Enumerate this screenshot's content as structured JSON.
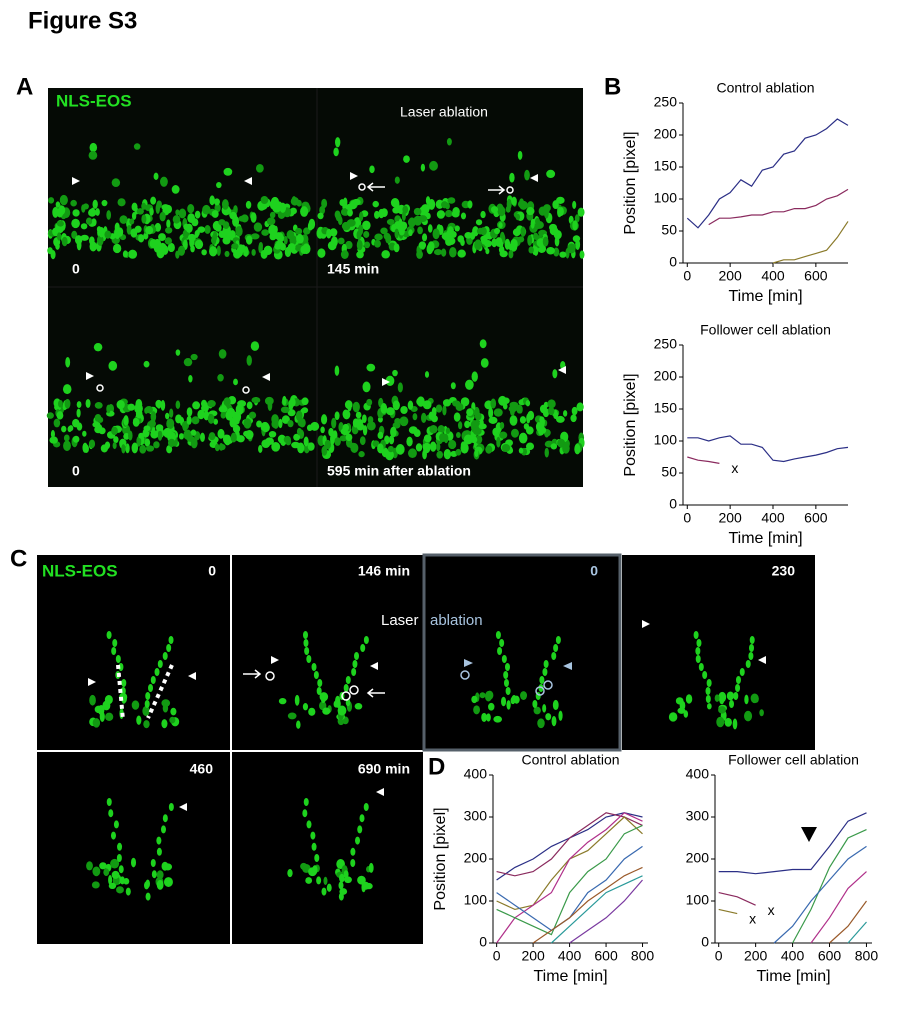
{
  "figure_title": "Figure S3",
  "panel_labels": [
    "A",
    "B",
    "C",
    "D"
  ],
  "panel_a": {
    "stain": "NLS-EOS",
    "laser_ablation": "Laser ablation",
    "times": [
      "0",
      "145 min",
      "0",
      "595 min after ablation"
    ]
  },
  "panel_c": {
    "stain": "NLS-EOS",
    "times": [
      "0",
      "146 min",
      "0",
      "230",
      "460",
      "690 min"
    ],
    "laser": "Laser",
    "ablation": "ablation"
  },
  "chart_data": [
    {
      "type": "line",
      "title": "Control ablation",
      "x_label": "Time [min]",
      "y_label": "Position [pixel]",
      "x": [
        0,
        50,
        100,
        150,
        200,
        250,
        300,
        350,
        400,
        450,
        500,
        550,
        600,
        650,
        700,
        750
      ],
      "xlim": [
        -20,
        750
      ],
      "xticks": [
        0,
        200,
        400,
        600
      ],
      "ylim": [
        0,
        250
      ],
      "yticks": [
        0,
        50,
        100,
        150,
        200,
        250
      ],
      "series": [
        {
          "color": "#2b2f86",
          "values": [
            70,
            55,
            75,
            100,
            110,
            130,
            120,
            145,
            150,
            170,
            175,
            195,
            200,
            210,
            225,
            215
          ]
        },
        {
          "color": "#8a2a5e",
          "values": [
            null,
            null,
            60,
            70,
            70,
            72,
            75,
            75,
            80,
            80,
            85,
            85,
            90,
            100,
            105,
            115
          ]
        },
        {
          "color": "#8a7a2a",
          "values": [
            null,
            null,
            null,
            null,
            null,
            null,
            null,
            null,
            0,
            5,
            5,
            10,
            15,
            20,
            40,
            65
          ]
        }
      ]
    },
    {
      "type": "line",
      "title": "Follower cell ablation",
      "x_label": "Time [min]",
      "y_label": "Position [pixel]",
      "x": [
        0,
        50,
        100,
        150,
        200,
        250,
        300,
        350,
        400,
        450,
        500,
        550,
        600,
        650,
        700,
        750
      ],
      "xlim": [
        -20,
        750
      ],
      "xticks": [
        0,
        200,
        400,
        600
      ],
      "ylim": [
        0,
        250
      ],
      "yticks": [
        0,
        50,
        100,
        150,
        200,
        250
      ],
      "annotations": [
        "x"
      ],
      "series": [
        {
          "color": "#2b2f86",
          "values": [
            105,
            105,
            100,
            105,
            108,
            95,
            95,
            90,
            70,
            68,
            72,
            75,
            78,
            82,
            88,
            90
          ]
        },
        {
          "color": "#8a2a5e",
          "values": [
            75,
            70,
            68,
            65,
            null,
            null,
            null,
            null,
            null,
            null,
            null,
            null,
            null,
            null,
            null,
            null
          ]
        }
      ]
    },
    {
      "type": "line",
      "title": "Control ablation",
      "x_label": "Time [min]",
      "y_label": "Position [pixel]",
      "x": [
        0,
        100,
        200,
        300,
        400,
        500,
        600,
        700,
        800
      ],
      "xlim": [
        -20,
        830
      ],
      "xticks": [
        0,
        200,
        400,
        600,
        800
      ],
      "ylim": [
        0,
        400
      ],
      "yticks": [
        0,
        100,
        200,
        300,
        400
      ],
      "series": [
        {
          "color": "#2b2f86",
          "values": [
            150,
            180,
            200,
            230,
            250,
            270,
            300,
            310,
            300
          ]
        },
        {
          "color": "#8a2a5e",
          "values": [
            170,
            160,
            170,
            200,
            250,
            280,
            310,
            300,
            280
          ]
        },
        {
          "color": "#8a7a2a",
          "values": [
            100,
            80,
            90,
            150,
            200,
            220,
            260,
            300,
            260
          ]
        },
        {
          "color": "#b0308a",
          "values": [
            0,
            60,
            90,
            120,
            200,
            240,
            270,
            310,
            290
          ]
        },
        {
          "color": "#3a9a4a",
          "values": [
            80,
            60,
            40,
            20,
            120,
            170,
            200,
            260,
            280
          ]
        },
        {
          "color": "#3a6ab0",
          "values": [
            120,
            90,
            60,
            30,
            60,
            120,
            150,
            200,
            230
          ]
        },
        {
          "color": "#9a5a2a",
          "values": [
            null,
            null,
            0,
            30,
            60,
            100,
            130,
            160,
            180
          ]
        },
        {
          "color": "#2a9a9a",
          "values": [
            null,
            null,
            null,
            0,
            40,
            80,
            120,
            140,
            160
          ]
        },
        {
          "color": "#7a3aa0",
          "values": [
            null,
            null,
            null,
            null,
            0,
            30,
            60,
            100,
            150
          ]
        }
      ]
    },
    {
      "type": "line",
      "title": "Follower cell ablation",
      "x_label": "Time [min]",
      "y_label": null,
      "x": [
        0,
        100,
        200,
        300,
        400,
        500,
        600,
        700,
        800
      ],
      "xlim": [
        -20,
        830
      ],
      "xticks": [
        0,
        200,
        400,
        600,
        800
      ],
      "ylim": [
        0,
        400
      ],
      "yticks": [
        0,
        100,
        200,
        300,
        400
      ],
      "annotations": [
        "x",
        "x"
      ],
      "series": [
        {
          "color": "#2b2f86",
          "values": [
            170,
            170,
            165,
            170,
            175,
            175,
            230,
            290,
            310
          ]
        },
        {
          "color": "#8a2a5e",
          "values": [
            120,
            110,
            90,
            null,
            null,
            null,
            null,
            null,
            null
          ]
        },
        {
          "color": "#8a7a2a",
          "values": [
            80,
            70,
            null,
            null,
            null,
            null,
            null,
            null,
            null
          ]
        },
        {
          "color": "#3a9a4a",
          "values": [
            null,
            null,
            null,
            null,
            0,
            80,
            180,
            250,
            270
          ]
        },
        {
          "color": "#3a6ab0",
          "values": [
            null,
            null,
            null,
            0,
            40,
            100,
            150,
            200,
            230
          ]
        },
        {
          "color": "#b0308a",
          "values": [
            null,
            null,
            null,
            null,
            null,
            0,
            60,
            130,
            170
          ]
        },
        {
          "color": "#9a5a2a",
          "values": [
            null,
            null,
            null,
            null,
            null,
            null,
            0,
            40,
            100
          ]
        },
        {
          "color": "#2a9a9a",
          "values": [
            null,
            null,
            null,
            null,
            null,
            null,
            null,
            0,
            50
          ]
        }
      ]
    }
  ]
}
